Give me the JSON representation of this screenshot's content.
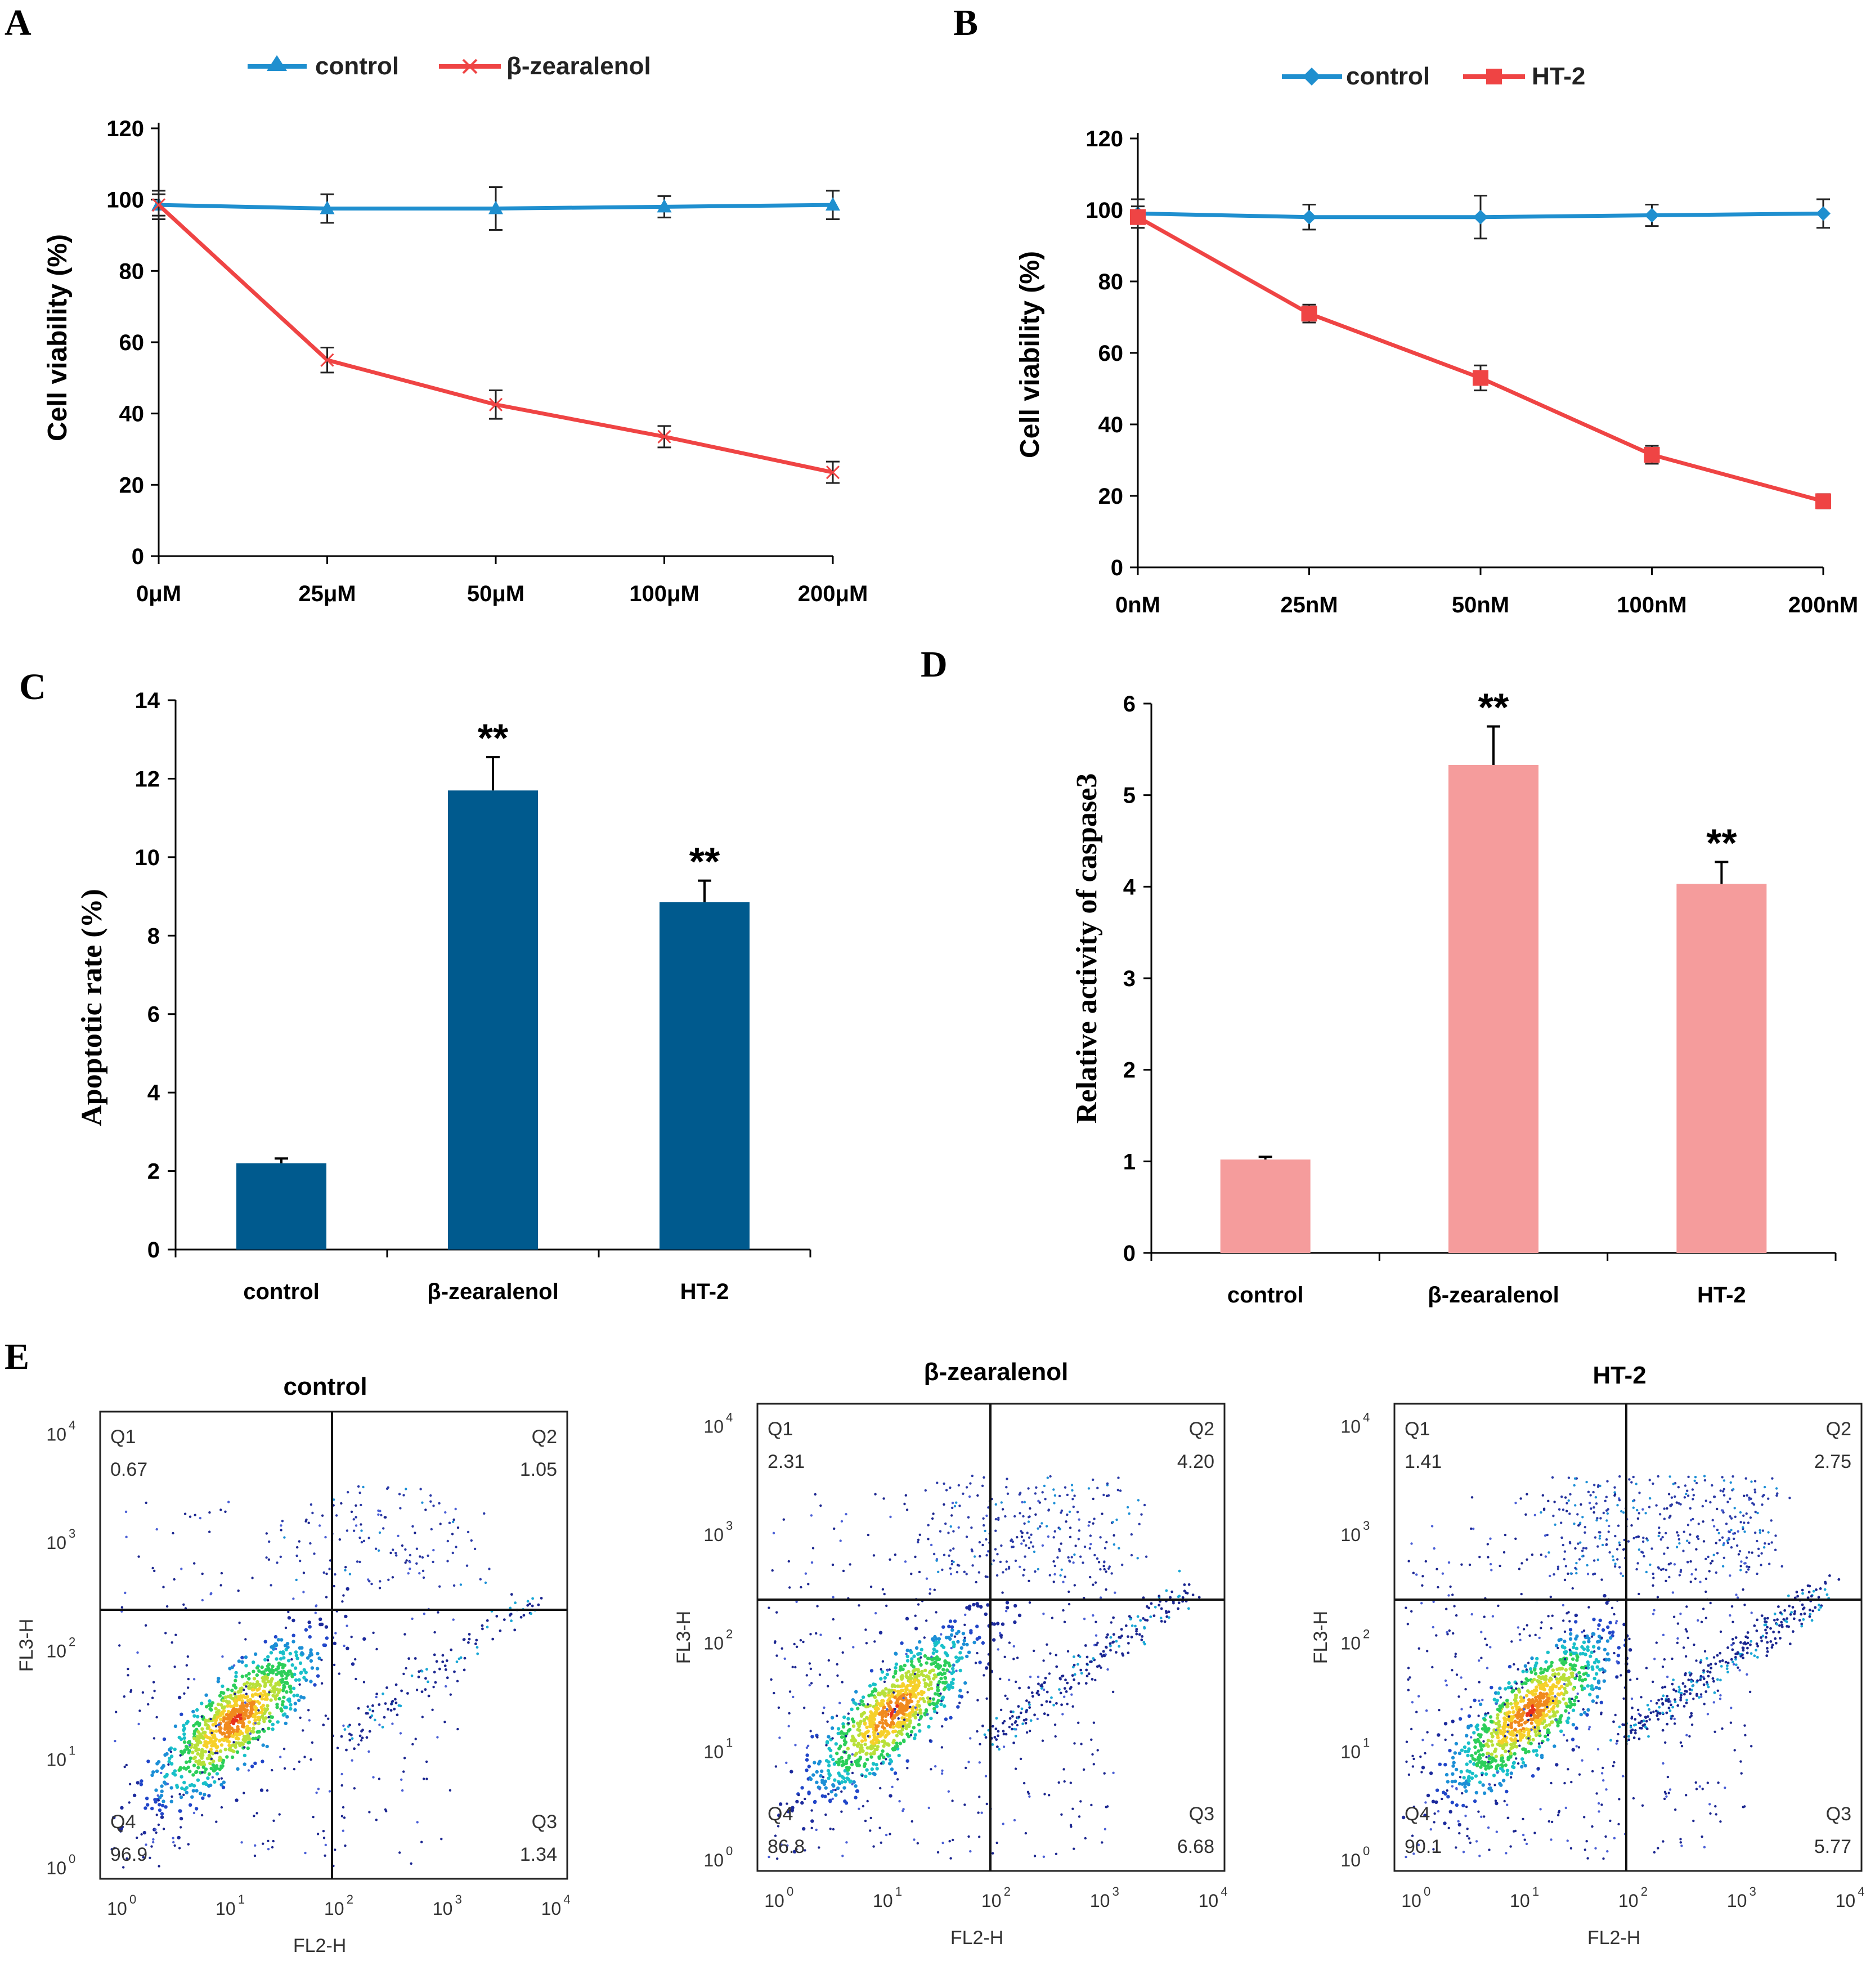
{
  "panels": {
    "A": "A",
    "B": "B",
    "C": "C",
    "D": "D",
    "E": "E"
  },
  "colors": {
    "control_line": "#1f8fcf",
    "treated_line": "#ef4444",
    "bar_dark": "#005a8e",
    "bar_pink": "#f59c9c",
    "axis": "#000000"
  },
  "chart_data": [
    {
      "id": "A",
      "type": "line",
      "categories": [
        "0μM",
        "25μM",
        "50μM",
        "100μM",
        "200μM"
      ],
      "ylabel": "Cell viability (%)",
      "xlabel": "",
      "ylim": [
        0,
        120
      ],
      "yticks": [
        0,
        20,
        40,
        60,
        80,
        100,
        120
      ],
      "series": [
        {
          "name": "control",
          "marker": "triangle",
          "values": [
            98.5,
            97.5,
            97.5,
            98,
            98.5
          ],
          "errors": [
            4,
            4,
            6,
            3,
            4
          ]
        },
        {
          "name": "β-zearalenol",
          "marker": "x",
          "values": [
            98.5,
            55,
            42.5,
            33.5,
            23.5
          ],
          "errors": [
            3,
            3.5,
            4,
            3,
            3
          ]
        }
      ]
    },
    {
      "id": "B",
      "type": "line",
      "categories": [
        "0nM",
        "25nM",
        "50nM",
        "100nM",
        "200nM"
      ],
      "ylabel": "Cell viability (%)",
      "xlabel": "",
      "ylim": [
        0,
        120
      ],
      "yticks": [
        0,
        20,
        40,
        60,
        80,
        100,
        120
      ],
      "series": [
        {
          "name": "control",
          "marker": "diamond",
          "values": [
            99,
            98,
            98,
            98.5,
            99
          ],
          "errors": [
            4,
            3.5,
            6,
            3,
            4
          ]
        },
        {
          "name": "HT-2",
          "marker": "square",
          "values": [
            98,
            71,
            53,
            31.5,
            18.5
          ],
          "errors": [
            3,
            2.5,
            3.5,
            2.5,
            2
          ]
        }
      ]
    },
    {
      "id": "C",
      "type": "bar",
      "categories": [
        "control",
        "β-zearalenol",
        "HT-2"
      ],
      "values": [
        2.2,
        11.7,
        8.85
      ],
      "errors": [
        0.12,
        0.85,
        0.55
      ],
      "significance": [
        "",
        "**",
        "**"
      ],
      "ylabel": "Apoptotic rate (%)",
      "ylim": [
        0,
        14
      ],
      "yticks": [
        0,
        2,
        4,
        6,
        8,
        10,
        12,
        14
      ]
    },
    {
      "id": "D",
      "type": "bar",
      "categories": [
        "control",
        "β-zearalenol",
        "HT-2"
      ],
      "values": [
        1.02,
        5.33,
        4.03
      ],
      "errors": [
        0.03,
        0.42,
        0.24
      ],
      "significance": [
        "",
        "**",
        "**"
      ],
      "ylabel": "Relative activity of caspase3",
      "ylim": [
        0,
        6
      ],
      "yticks": [
        0,
        1,
        2,
        3,
        4,
        5,
        6
      ]
    },
    {
      "id": "E",
      "type": "scatter",
      "xlabel": "FL2-H",
      "ylabel": "FL3-H",
      "axis_ticks": [
        "10",
        "10",
        "10",
        "10",
        "10"
      ],
      "axis_exponents": [
        "0",
        "1",
        "2",
        "3",
        "4"
      ],
      "plots": [
        {
          "title": "control",
          "quadrants": {
            "Q1": "0.67",
            "Q2": "1.05",
            "Q3": "1.34",
            "Q4": "96.9"
          }
        },
        {
          "title": "β-zearalenol",
          "quadrants": {
            "Q1": "2.31",
            "Q2": "4.20",
            "Q3": "6.68",
            "Q4": "86.8"
          }
        },
        {
          "title": "HT-2",
          "quadrants": {
            "Q1": "1.41",
            "Q2": "2.75",
            "Q3": "5.77",
            "Q4": "90.1"
          }
        }
      ]
    }
  ]
}
